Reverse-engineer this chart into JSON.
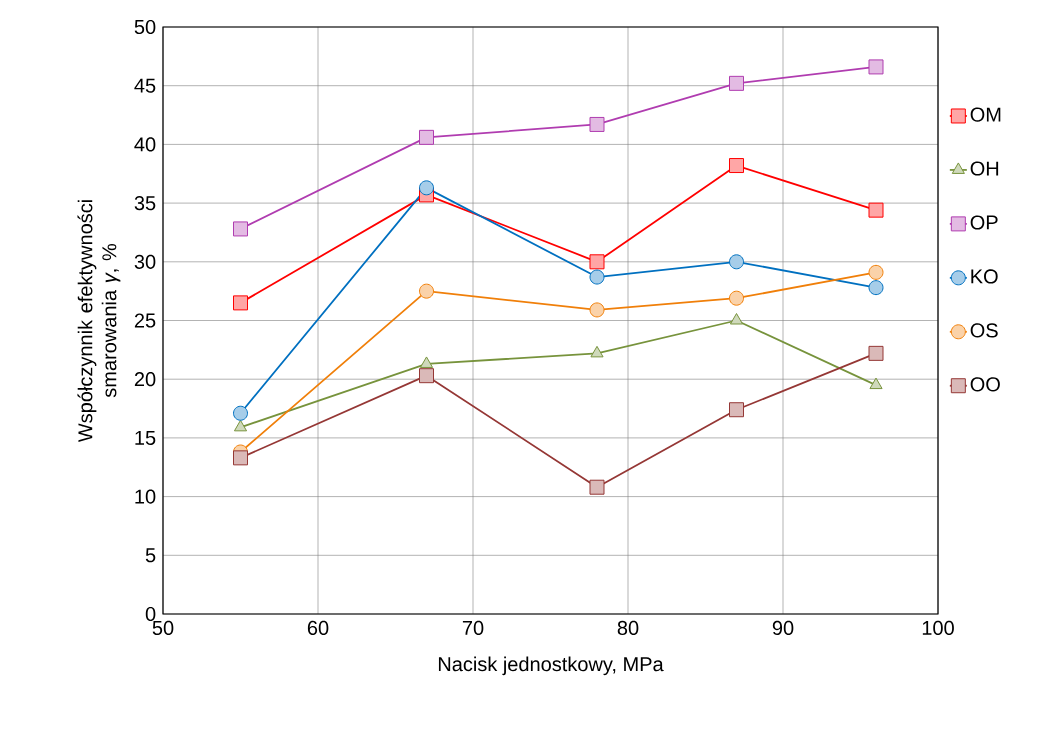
{
  "chart_data": {
    "type": "line",
    "xlabel": "Nacisk jednostkowy, MPa",
    "ylabel": "Współczynnik efektywności smarowania *γ*, %",
    "x": [
      55,
      67,
      78,
      87,
      96
    ],
    "xlim": [
      50,
      100
    ],
    "xticks": [
      50,
      60,
      70,
      80,
      90,
      100
    ],
    "ylim": [
      0,
      50
    ],
    "yticks": [
      0,
      5,
      10,
      15,
      20,
      25,
      30,
      35,
      40,
      45,
      50
    ],
    "grid": true,
    "legend": "right",
    "series": [
      {
        "name": "OM",
        "color": "#ff0000",
        "marker": "square",
        "values": [
          26.5,
          35.7,
          30.0,
          38.2,
          34.4
        ]
      },
      {
        "name": "OH",
        "color": "#77933c",
        "marker": "triangle",
        "values": [
          15.9,
          21.3,
          22.2,
          25.0,
          19.5
        ]
      },
      {
        "name": "OP",
        "color": "#b03cb0",
        "marker": "square",
        "values": [
          32.8,
          40.6,
          41.7,
          45.2,
          46.6
        ]
      },
      {
        "name": "KO",
        "color": "#0070c0",
        "marker": "circle",
        "values": [
          17.1,
          36.3,
          28.7,
          30.0,
          27.8
        ]
      },
      {
        "name": "OS",
        "color": "#f07f09",
        "marker": "circle",
        "values": [
          13.8,
          27.5,
          25.9,
          26.9,
          29.1
        ]
      },
      {
        "name": "OO",
        "color": "#953735",
        "marker": "square",
        "values": [
          13.3,
          20.3,
          10.8,
          17.4,
          22.2
        ]
      }
    ]
  }
}
